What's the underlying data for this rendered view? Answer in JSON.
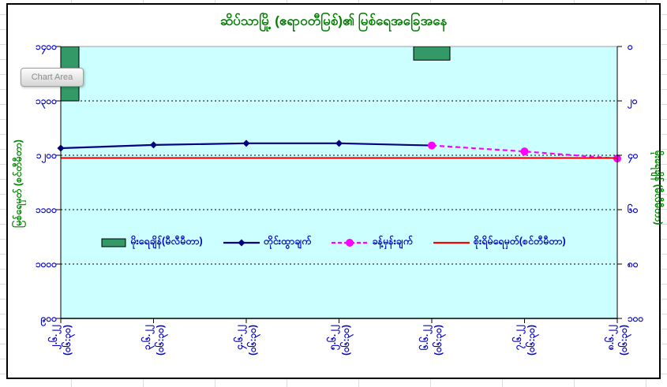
{
  "chart": {
    "tooltip_label": "Chart Area"
  },
  "chart_data": {
    "type": "combo",
    "title": "ဆိပ်သာမြို့ (ဧရာဝတီမြစ်)၏ မြစ်ရေအခြေအနေ",
    "categories": [
      "၂.၆.၂၂",
      "၃.၆.၂၂",
      "၄.၆.၂၂",
      "၅.၆.၂၂",
      "၆.၆.၂၂",
      "၇.၆.၂၂",
      "၈.၆.၂၂"
    ],
    "observation_time": "(၀၆:၃၀)",
    "left_axis": {
      "title": "မြစ်ရေမှတ် (စင်တီမီတာ)",
      "min": 900,
      "max": 1400,
      "step": 100,
      "tick_labels": [
        "၁၄၀၀",
        "၁၃၀၀",
        "၁၂၀၀",
        "၁၁၀၀",
        "၁၀၀၀",
        "၉၀၀"
      ]
    },
    "right_axis": {
      "title": "မိုးရေချိန် (မီလီမီတာ)",
      "min": 0,
      "max": 100,
      "step": 20,
      "reversed": true,
      "tick_labels": [
        "၀",
        "၂၀",
        "၄၀",
        "၆၀",
        "၈၀",
        "၁၀၀"
      ]
    },
    "series": [
      {
        "name": "မိုးရေချိန်(မီလီမီတာ)",
        "type": "bar",
        "axis": "right",
        "color": "#339966",
        "values": [
          20,
          null,
          null,
          null,
          5,
          null,
          null
        ]
      },
      {
        "name": "တိုင်းထွာချက်",
        "type": "line",
        "axis": "left",
        "color": "#000080",
        "marker": "diamond",
        "dashed": false,
        "values": [
          1213,
          1219,
          1222,
          1222,
          1218,
          null,
          null
        ]
      },
      {
        "name": "ခန့်မှန်းချက်",
        "type": "line",
        "axis": "left",
        "color": "#FF00FF",
        "marker": "circle",
        "dashed": true,
        "values": [
          null,
          null,
          null,
          null,
          1218,
          1207,
          1194
        ]
      },
      {
        "name": "စိုးရိမ်ရေမှတ်(စင်တီမီတာ)",
        "type": "line",
        "axis": "left",
        "color": "#FF0000",
        "marker": "none",
        "dashed": false,
        "values": [
          1195,
          1195,
          1195,
          1195,
          1195,
          1195,
          1195
        ]
      }
    ],
    "plot_background": "#CCFFFF",
    "grid": "horizontal-dotted",
    "legend_position": "inside-middle"
  }
}
